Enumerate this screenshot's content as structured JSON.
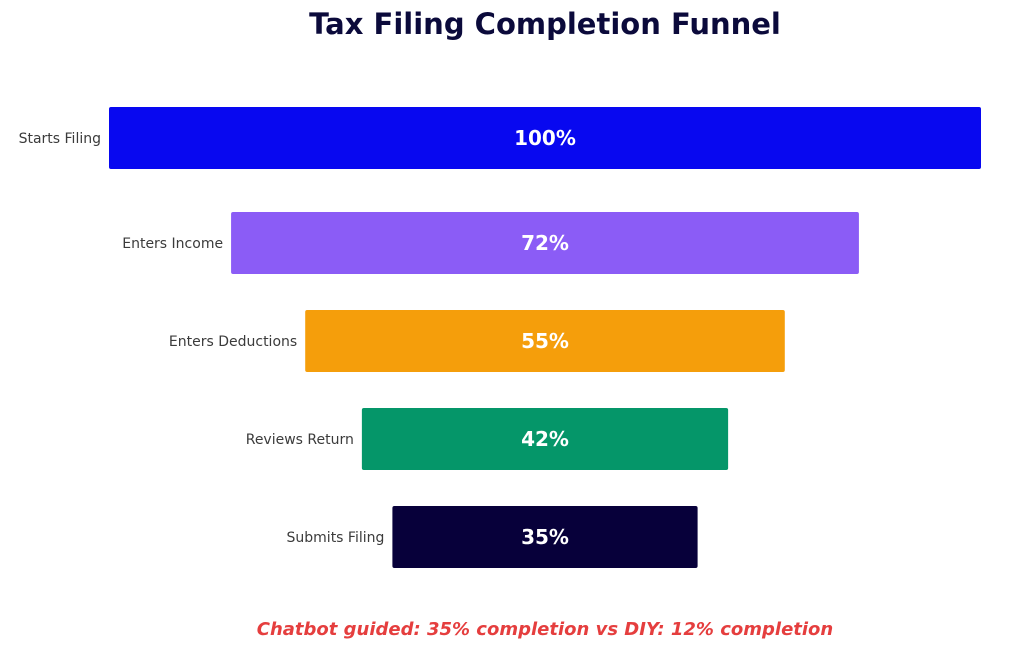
{
  "chart_data": {
    "type": "bar",
    "orientation": "horizontal",
    "style": "funnel",
    "title": "Tax Filing Completion Funnel",
    "categories": [
      "Starts Filing",
      "Enters Income",
      "Enters Deductions",
      "Reviews Return",
      "Submits Filing"
    ],
    "values": [
      100,
      72,
      55,
      42,
      35
    ],
    "data_labels": [
      "100%",
      "72%",
      "55%",
      "42%",
      "35%"
    ],
    "colors": [
      "#0808f0",
      "#8b5cf6",
      "#f59e0b",
      "#059669",
      "#07003a"
    ],
    "grid": false,
    "legend": false,
    "annotation": {
      "text": "Chatbot guided: 35% completion   vs   DIY: 12% completion",
      "color": "#e53e3e"
    },
    "title_color": "#0b0a3b",
    "label_color": "#3b3b3b"
  }
}
